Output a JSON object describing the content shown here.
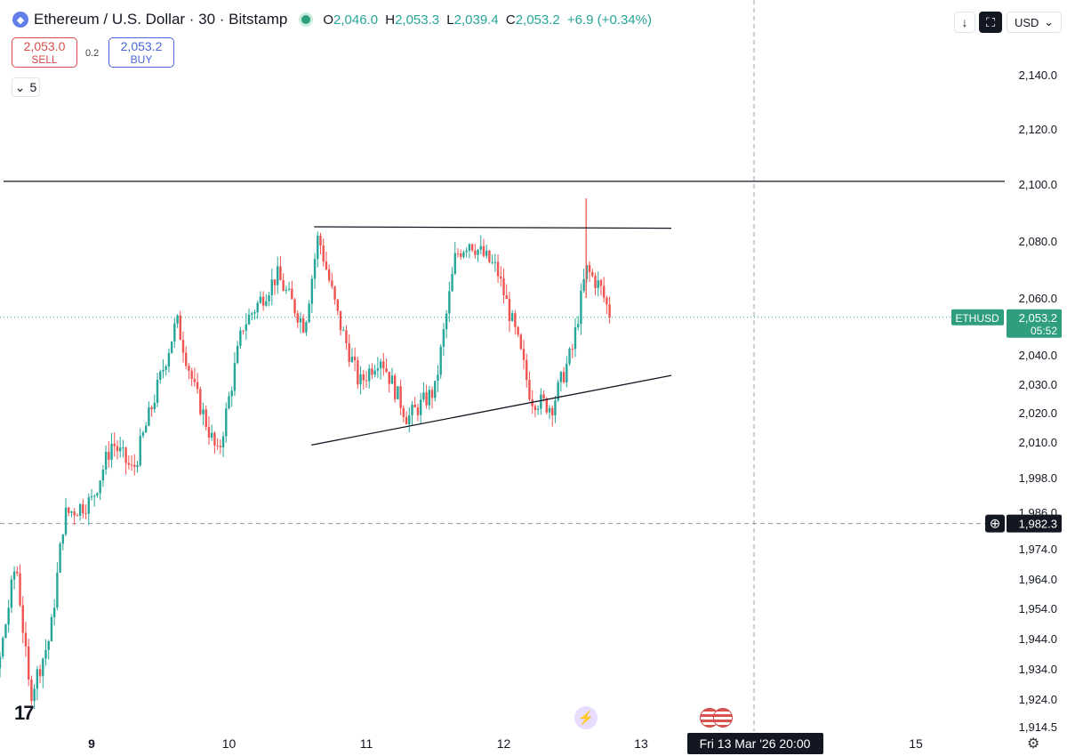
{
  "header": {
    "symbol_icon": "ethereum-icon",
    "title": "Ethereum / U.S. Dollar · 30 · Bitstamp",
    "ohlc": {
      "o_label": "O",
      "o": "2,046.0",
      "h_label": "H",
      "h": "2,053.3",
      "l_label": "L",
      "l": "2,039.4",
      "c_label": "C",
      "c": "2,053.2",
      "change": "+6.9 (+0.34%)"
    }
  },
  "trade": {
    "sell_price": "2,053.0",
    "sell_label": "SELL",
    "spread": "0.2",
    "buy_price": "2,053.2",
    "buy_label": "BUY"
  },
  "indicators_toggle": {
    "icon": "chevron-down-icon",
    "count": "5"
  },
  "toolbar": {
    "download_icon": "arrow-down-icon",
    "fullscreen_icon": "fullscreen-icon",
    "currency": "USD",
    "currency_icon": "chevron-down-icon"
  },
  "price_axis": {
    "ticks": [
      "2,140.0",
      "2,120.0",
      "2,100.0",
      "2,080.0",
      "2,060.0",
      "2,040.0",
      "2,030.0",
      "2,020.0",
      "2,010.0",
      "1,998.0",
      "1,986.0",
      "1,974.0",
      "1,964.0",
      "1,954.0",
      "1,944.0",
      "1,934.0",
      "1,924.0",
      "1,914.5"
    ],
    "last_price_label": "ETHUSD",
    "last_price": "2,053.2",
    "countdown": "05:52",
    "crosshair_price": "1,982.3",
    "crosshair_icon": "plus-circle-icon"
  },
  "time_axis": {
    "ticks": [
      "9",
      "10",
      "11",
      "12",
      "13",
      "15"
    ],
    "crosshair_time": "Fri 13 Mar '26   20:00"
  },
  "colors": {
    "up": "#26a69a",
    "down": "#ef5350",
    "last_price_bg": "#2e9e7f",
    "line": "#131722"
  },
  "icons": {
    "logo": "tradingview-logo-icon",
    "events": "lightning-icon",
    "economic": "us-flag-icon",
    "settings": "gear-icon"
  },
  "chart_data": {
    "type": "candlestick",
    "title": "Ethereum / U.S. Dollar · 30 · Bitstamp",
    "interval": "30",
    "x_labels": [
      "9",
      "10",
      "11",
      "12",
      "13",
      "15"
    ],
    "ylim": [
      1912,
      2148
    ],
    "last_price": 2053.2,
    "close_path": [
      {
        "day": 8.0,
        "p": 1960
      },
      {
        "day": 8.07,
        "p": 1980
      },
      {
        "day": 8.15,
        "p": 1935
      },
      {
        "day": 8.3,
        "p": 1928
      },
      {
        "day": 8.45,
        "p": 1970
      },
      {
        "day": 8.55,
        "p": 1925
      },
      {
        "day": 8.7,
        "p": 1945
      },
      {
        "day": 8.8,
        "p": 1985
      },
      {
        "day": 9.0,
        "p": 1990
      },
      {
        "day": 9.15,
        "p": 2010
      },
      {
        "day": 9.3,
        "p": 2000
      },
      {
        "day": 9.5,
        "p": 2032
      },
      {
        "day": 9.62,
        "p": 2052
      },
      {
        "day": 9.75,
        "p": 2028
      },
      {
        "day": 9.92,
        "p": 2005
      },
      {
        "day": 10.1,
        "p": 2050
      },
      {
        "day": 10.35,
        "p": 2068
      },
      {
        "day": 10.55,
        "p": 2050
      },
      {
        "day": 10.65,
        "p": 2082
      },
      {
        "day": 10.8,
        "p": 2052
      },
      {
        "day": 10.95,
        "p": 2030
      },
      {
        "day": 11.1,
        "p": 2040
      },
      {
        "day": 11.3,
        "p": 2018
      },
      {
        "day": 11.5,
        "p": 2028
      },
      {
        "day": 11.65,
        "p": 2075
      },
      {
        "day": 11.75,
        "p": 2080
      },
      {
        "day": 11.95,
        "p": 2070
      },
      {
        "day": 12.1,
        "p": 2045
      },
      {
        "day": 12.2,
        "p": 2025
      },
      {
        "day": 12.35,
        "p": 2022
      },
      {
        "day": 12.5,
        "p": 2042
      },
      {
        "day": 12.6,
        "p": 2070
      },
      {
        "day": 12.7,
        "p": 2064
      },
      {
        "day": 12.78,
        "p": 2053.2
      }
    ],
    "drawings": [
      {
        "type": "horizontal-line",
        "price": 2101
      },
      {
        "type": "trend-line",
        "from": {
          "day": 10.62,
          "p": 2085
        },
        "to": {
          "day": 13.22,
          "p": 2084.5
        }
      },
      {
        "type": "trend-line",
        "from": {
          "day": 10.6,
          "p": 2009
        },
        "to": {
          "day": 13.22,
          "p": 2033
        }
      }
    ],
    "crosshair": {
      "price": 1982.3,
      "time": "Fri 13 Mar '26 20:00"
    }
  }
}
